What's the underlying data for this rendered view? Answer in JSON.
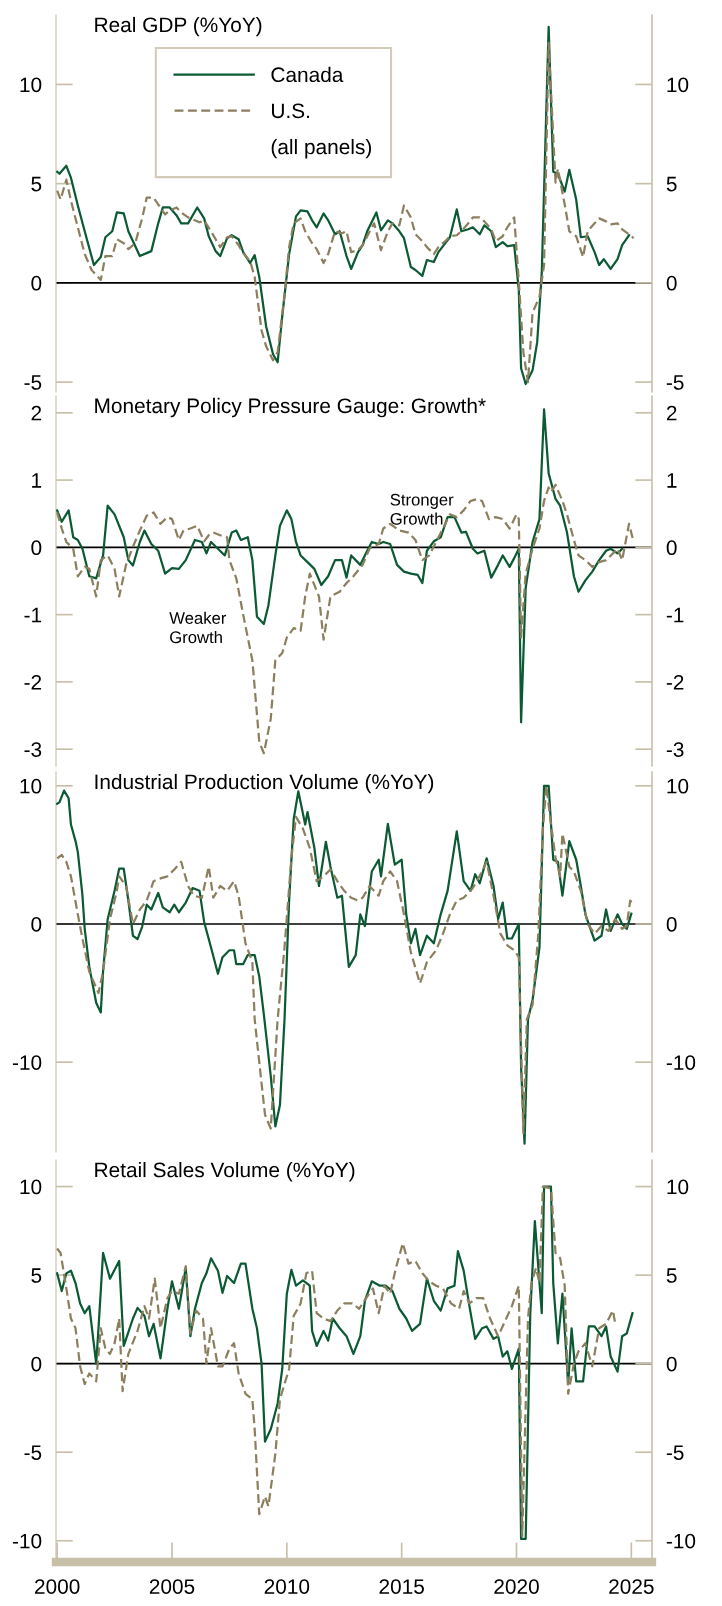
{
  "chart_data": [
    {
      "type": "line",
      "title": "Real GDP (%YoY)",
      "xlim": [
        1999.95,
        2025.9
      ],
      "xticks": [
        2000,
        2005,
        2010,
        2015,
        2020,
        2025
      ],
      "ylim": [
        -5.5,
        13.5
      ],
      "yticks": [
        -5,
        0,
        5,
        10
      ],
      "y2lim": [
        -5.5,
        13.5
      ],
      "y2ticks": [
        -5,
        0,
        5,
        10
      ],
      "tick_labels": "y",
      "grid": false,
      "legend": "top left",
      "annotations": [
        "(all panels)"
      ],
      "ref_lines": [
        {
          "axis": "y",
          "value": 0,
          "color": "#000000"
        }
      ],
      "series": [
        {
          "name": "Canada",
          "color": "#0b5a34",
          "line_style": "solid",
          "x": [
            2000.0,
            2000.1,
            2000.4,
            2000.6,
            2000.9,
            2001.2,
            2001.6,
            2001.9,
            2002.1,
            2002.4,
            2002.6,
            2002.9,
            2003.1,
            2003.6,
            2004.1,
            2004.4,
            2004.6,
            2004.9,
            2005.2,
            2005.4,
            2005.7,
            2006.1,
            2006.4,
            2006.6,
            2006.9,
            2007.1,
            2007.4,
            2007.6,
            2007.9,
            2008.1,
            2008.4,
            2008.6,
            2008.8,
            2009.1,
            2009.4,
            2009.6,
            2009.8,
            2010.1,
            2010.4,
            2010.6,
            2010.9,
            2011.1,
            2011.3,
            2011.6,
            2011.8,
            2012.1,
            2012.3,
            2012.6,
            2012.8,
            2013.1,
            2013.3,
            2013.5,
            2013.9,
            2014.1,
            2014.4,
            2014.6,
            2014.9,
            2015.1,
            2015.4,
            2015.6,
            2015.9,
            2016.1,
            2016.4,
            2016.6,
            2016.9,
            2017.1,
            2017.4,
            2017.6,
            2017.9,
            2018.1,
            2018.4,
            2018.6,
            2018.9,
            2019.1,
            2019.4,
            2019.6,
            2019.9,
            2020.1,
            2020.2,
            2020.4,
            2020.7,
            2020.9,
            2021.1,
            2021.4,
            2021.6,
            2021.8,
            2022.1,
            2022.3,
            2022.6,
            2022.8,
            2023.1,
            2023.4,
            2023.6,
            2023.8,
            2024.1,
            2024.4,
            2024.6,
            2024.9
          ],
          "values": [
            5.6,
            5.5,
            5.9,
            5.3,
            3.9,
            2.6,
            0.9,
            1.3,
            2.3,
            2.6,
            3.55,
            3.5,
            2.6,
            1.35,
            1.6,
            3.0,
            3.8,
            3.8,
            3.4,
            3.0,
            3.0,
            3.8,
            3.25,
            2.35,
            1.6,
            1.35,
            2.25,
            2.4,
            2.2,
            1.55,
            1.0,
            1.4,
            0.3,
            -2.2,
            -3.6,
            -4.0,
            -1.7,
            1.45,
            3.35,
            3.65,
            3.6,
            3.15,
            2.8,
            3.5,
            3.15,
            2.45,
            2.6,
            1.35,
            0.7,
            1.55,
            1.9,
            2.6,
            3.55,
            2.65,
            3.15,
            3.0,
            2.6,
            2.25,
            0.8,
            0.65,
            0.35,
            1.15,
            1.05,
            1.55,
            2.0,
            2.3,
            3.7,
            2.6,
            2.7,
            2.8,
            2.45,
            2.9,
            2.6,
            1.8,
            2.05,
            1.85,
            1.9,
            -0.35,
            -4.3,
            -5.1,
            -4.4,
            -3.0,
            0.5,
            12.9,
            5.6,
            5.5,
            4.6,
            5.7,
            4.2,
            2.3,
            2.35,
            1.55,
            0.9,
            1.2,
            0.7,
            1.2,
            1.9,
            2.4
          ]
        },
        {
          "name": "U.S.",
          "color": "#8c7f5e",
          "line_style": "dashed",
          "x": [
            2000.0,
            2000.15,
            2000.4,
            2000.6,
            2000.9,
            2001.2,
            2001.5,
            2001.9,
            2002.1,
            2002.4,
            2002.6,
            2002.9,
            2003.1,
            2003.4,
            2003.7,
            2003.9,
            2004.2,
            2004.4,
            2004.7,
            2004.9,
            2005.2,
            2005.4,
            2005.7,
            2005.9,
            2006.2,
            2006.4,
            2006.7,
            2006.9,
            2007.1,
            2007.4,
            2007.6,
            2007.9,
            2008.1,
            2008.4,
            2008.6,
            2008.9,
            2009.1,
            2009.4,
            2009.6,
            2009.9,
            2010.1,
            2010.3,
            2010.6,
            2010.8,
            2011.1,
            2011.3,
            2011.6,
            2011.8,
            2012.1,
            2012.4,
            2012.6,
            2012.8,
            2013.1,
            2013.3,
            2013.5,
            2013.8,
            2014.1,
            2014.4,
            2014.6,
            2014.9,
            2015.1,
            2015.4,
            2015.6,
            2015.9,
            2016.1,
            2016.4,
            2016.6,
            2016.9,
            2017.1,
            2017.4,
            2017.6,
            2017.9,
            2018.1,
            2018.4,
            2018.6,
            2018.9,
            2019.1,
            2019.4,
            2019.6,
            2019.9,
            2020.1,
            2020.3,
            2020.5,
            2020.7,
            2021.0,
            2021.2,
            2021.4,
            2021.7,
            2021.8,
            2022.1,
            2022.3,
            2022.6,
            2022.9,
            2023.1,
            2023.4,
            2023.6,
            2023.9,
            2024.1,
            2024.4,
            2024.6,
            2024.9,
            2025.1
          ],
          "values": [
            4.65,
            4.2,
            5.2,
            4.15,
            2.8,
            1.45,
            0.65,
            0.15,
            1.35,
            1.35,
            2.2,
            2.0,
            1.7,
            2.0,
            3.25,
            4.3,
            4.3,
            3.95,
            3.45,
            3.65,
            3.8,
            3.55,
            3.3,
            3.2,
            3.05,
            3.15,
            2.6,
            2.2,
            1.8,
            2.3,
            2.35,
            1.9,
            1.5,
            1.1,
            0.3,
            -2.4,
            -3.2,
            -3.9,
            -3.5,
            -0.6,
            1.8,
            3.0,
            3.25,
            2.6,
            2.0,
            1.7,
            1.0,
            1.45,
            2.6,
            2.5,
            2.6,
            1.55,
            1.65,
            1.9,
            2.35,
            3.0,
            1.65,
            2.6,
            3.0,
            2.9,
            3.9,
            3.3,
            2.45,
            2.1,
            1.8,
            1.45,
            1.8,
            2.1,
            2.35,
            2.4,
            2.6,
            3.0,
            3.3,
            3.3,
            3.1,
            2.7,
            2.1,
            2.35,
            2.8,
            3.3,
            0.1,
            -3.5,
            -5.0,
            -1.5,
            -0.7,
            0.9,
            12.1,
            5.05,
            5.75,
            3.95,
            2.6,
            2.35,
            1.3,
            2.6,
            3.0,
            3.25,
            3.1,
            2.95,
            3.0,
            2.7,
            2.45,
            2.25
          ]
        }
      ]
    },
    {
      "type": "line",
      "title": "Monetary Policy Pressure Gauge: Growth*",
      "xlim": [
        1999.95,
        2025.9
      ],
      "xticks": [
        2000,
        2005,
        2010,
        2015,
        2020,
        2025
      ],
      "ylim": [
        -3.25,
        2.25
      ],
      "yticks": [
        -3,
        -2,
        -1,
        0,
        1,
        2
      ],
      "y2lim": [
        -3.25,
        2.25
      ],
      "y2ticks": [
        -3,
        -2,
        -1,
        0,
        1,
        2
      ],
      "tick_labels": "y",
      "grid": false,
      "annotations": [
        "Stronger\nGrowth",
        "Weaker\nGrowth"
      ],
      "ref_lines": [
        {
          "axis": "y",
          "value": 0,
          "color": "#000000"
        }
      ],
      "series": [
        {
          "color": "#0b5a34",
          "line_style": "solid",
          "x": [
            2000.0,
            2000.2,
            2000.5,
            2000.7,
            2000.9,
            2001.1,
            2001.4,
            2001.7,
            2002.0,
            2002.2,
            2002.5,
            2002.9,
            2003.1,
            2003.3,
            2003.6,
            2003.8,
            2004.1,
            2004.4,
            2004.7,
            2005.0,
            2005.3,
            2005.6,
            2006.0,
            2006.3,
            2006.5,
            2006.7,
            2007.0,
            2007.3,
            2007.6,
            2007.8,
            2008.0,
            2008.3,
            2008.5,
            2008.7,
            2009.0,
            2009.2,
            2009.5,
            2009.7,
            2010.0,
            2010.2,
            2010.4,
            2010.6,
            2010.9,
            2011.2,
            2011.5,
            2011.8,
            2012.1,
            2012.4,
            2012.6,
            2012.8,
            2013.2,
            2013.5,
            2013.7,
            2014.0,
            2014.2,
            2014.5,
            2014.8,
            2015.1,
            2015.4,
            2015.7,
            2015.9,
            2016.1,
            2016.4,
            2016.7,
            2017.0,
            2017.3,
            2017.6,
            2017.8,
            2018.1,
            2018.3,
            2018.6,
            2018.9,
            2019.2,
            2019.4,
            2019.7,
            2019.9,
            2020.1,
            2020.2,
            2020.4,
            2020.7,
            2021.0,
            2021.2,
            2021.4,
            2021.7,
            2021.9,
            2022.2,
            2022.5,
            2022.7,
            2023.0,
            2023.3,
            2023.6,
            2023.9,
            2024.1,
            2024.4,
            2024.6
          ],
          "values": [
            0.55,
            0.38,
            0.55,
            0.15,
            0.11,
            -0.02,
            -0.43,
            -0.46,
            -0.12,
            0.62,
            0.49,
            0.15,
            -0.19,
            -0.27,
            0.08,
            0.25,
            0.05,
            -0.05,
            -0.39,
            -0.31,
            -0.32,
            -0.19,
            0.11,
            0.08,
            -0.09,
            0.08,
            -0.02,
            -0.12,
            0.22,
            0.25,
            0.11,
            0.15,
            -0.19,
            -1.03,
            -1.14,
            -0.86,
            -0.12,
            0.32,
            0.55,
            0.42,
            0.08,
            -0.12,
            -0.22,
            -0.32,
            -0.56,
            -0.43,
            -0.19,
            -0.19,
            -0.45,
            -0.12,
            -0.26,
            -0.05,
            0.08,
            0.05,
            0.08,
            0.05,
            -0.26,
            -0.36,
            -0.39,
            -0.41,
            -0.53,
            -0.05,
            0.09,
            0.15,
            0.45,
            0.45,
            0.22,
            0.23,
            -0.02,
            -0.09,
            -0.05,
            -0.45,
            -0.26,
            -0.12,
            -0.29,
            -0.16,
            -0.02,
            -2.6,
            -0.6,
            0.08,
            0.42,
            2.05,
            1.1,
            0.72,
            0.62,
            0.22,
            -0.43,
            -0.66,
            -0.49,
            -0.36,
            -0.19,
            -0.05,
            -0.02,
            -0.09,
            -0.02
          ]
        },
        {
          "color": "#8c7f5e",
          "line_style": "dashed",
          "x": [
            2000.0,
            2000.2,
            2000.4,
            2000.7,
            2000.9,
            2001.2,
            2001.4,
            2001.7,
            2001.9,
            2002.2,
            2002.5,
            2002.7,
            2003.0,
            2003.3,
            2003.6,
            2003.9,
            2004.2,
            2004.5,
            2004.8,
            2005.0,
            2005.3,
            2005.5,
            2005.8,
            2006.1,
            2006.4,
            2006.6,
            2006.8,
            2007.1,
            2007.4,
            2007.5,
            2007.8,
            2008.1,
            2008.5,
            2008.6,
            2008.8,
            2009.0,
            2009.3,
            2009.5,
            2009.8,
            2010.0,
            2010.3,
            2010.6,
            2010.8,
            2011.0,
            2011.4,
            2011.6,
            2011.9,
            2012.3,
            2012.6,
            2012.9,
            2013.3,
            2013.6,
            2014.0,
            2014.2,
            2014.5,
            2014.9,
            2015.3,
            2015.6,
            2015.9,
            2016.2,
            2016.5,
            2016.8,
            2017.1,
            2017.4,
            2017.7,
            2018.0,
            2018.3,
            2018.5,
            2018.8,
            2019.1,
            2019.4,
            2019.7,
            2020.0,
            2020.1,
            2020.2,
            2020.4,
            2020.7,
            2021.0,
            2021.2,
            2021.4,
            2021.5,
            2021.7,
            2022.0,
            2022.2,
            2022.5,
            2022.7,
            2023.0,
            2023.3,
            2023.6,
            2023.9,
            2024.2,
            2024.4,
            2024.6,
            2024.9,
            2025.1
          ],
          "values": [
            0.52,
            0.28,
            0.08,
            -0.02,
            -0.43,
            -0.29,
            -0.32,
            -0.73,
            -0.19,
            -0.12,
            -0.32,
            -0.73,
            -0.26,
            0.01,
            0.25,
            0.47,
            0.52,
            0.35,
            0.45,
            0.42,
            0.11,
            0.25,
            0.28,
            0.32,
            0.09,
            0.18,
            0.22,
            0.18,
            0.15,
            -0.19,
            -0.46,
            -1.0,
            -1.68,
            -2.08,
            -2.89,
            -3.06,
            -2.55,
            -1.68,
            -1.57,
            -1.34,
            -1.2,
            -1.24,
            -0.73,
            -0.39,
            -0.73,
            -1.37,
            -0.73,
            -0.66,
            -0.53,
            -0.43,
            -0.26,
            -0.02,
            0.05,
            0.28,
            0.35,
            0.25,
            0.22,
            0.11,
            -0.19,
            -0.12,
            0.08,
            0.28,
            0.49,
            0.45,
            0.55,
            0.69,
            0.72,
            0.69,
            0.42,
            0.45,
            0.42,
            0.28,
            0.49,
            0.42,
            -1.34,
            -0.39,
            -0.02,
            0.28,
            0.69,
            0.89,
            0.82,
            0.93,
            0.69,
            0.49,
            0.11,
            -0.12,
            -0.19,
            -0.29,
            -0.22,
            -0.19,
            -0.09,
            -0.02,
            -0.19,
            0.35,
            0.08
          ]
        }
      ]
    },
    {
      "type": "line",
      "title": "Industrial Production Volume (%YoY)",
      "xlim": [
        1999.95,
        2025.9
      ],
      "xticks": [
        2000,
        2005,
        2010,
        2015,
        2020,
        2025
      ],
      "ylim": [
        -16.5,
        11
      ],
      "yticks": [
        -10,
        0,
        10
      ],
      "y2lim": [
        -16.5,
        11
      ],
      "y2ticks": [
        -10,
        0,
        10
      ],
      "tick_labels": "y",
      "grid": false,
      "ref_lines": [
        {
          "axis": "y",
          "value": 0,
          "color": "#000000"
        }
      ],
      "series": [
        {
          "color": "#0b5a34",
          "line_style": "solid",
          "x": [
            2000.0,
            2000.1,
            2000.3,
            2000.5,
            2000.6,
            2000.8,
            2000.9,
            2001.1,
            2001.2,
            2001.4,
            2001.7,
            2001.9,
            2002.0,
            2002.2,
            2002.5,
            2002.7,
            2002.9,
            2003.1,
            2003.3,
            2003.5,
            2003.7,
            2003.9,
            2004.1,
            2004.4,
            2004.6,
            2004.9,
            2005.1,
            2005.3,
            2005.6,
            2005.9,
            2006.2,
            2006.4,
            2006.7,
            2007.0,
            2007.2,
            2007.5,
            2007.7,
            2007.8,
            2008.1,
            2008.3,
            2008.6,
            2008.8,
            2009.0,
            2009.3,
            2009.5,
            2009.7,
            2009.9,
            2010.1,
            2010.3,
            2010.5,
            2010.8,
            2010.9,
            2011.2,
            2011.4,
            2011.7,
            2011.9,
            2012.2,
            2012.4,
            2012.7,
            2013.0,
            2013.2,
            2013.4,
            2013.7,
            2014.0,
            2014.1,
            2014.4,
            2014.7,
            2015.0,
            2015.2,
            2015.4,
            2015.6,
            2015.8,
            2016.1,
            2016.4,
            2016.7,
            2017.0,
            2017.4,
            2017.7,
            2018.0,
            2018.2,
            2018.4,
            2018.7,
            2019.0,
            2019.2,
            2019.4,
            2019.6,
            2019.8,
            2020.1,
            2020.2,
            2020.35,
            2020.5,
            2020.7,
            2021.0,
            2021.1,
            2021.2,
            2021.4,
            2021.6,
            2021.8,
            2022.0,
            2022.3,
            2022.6,
            2022.8,
            2023.0,
            2023.4,
            2023.7,
            2023.9,
            2024.1,
            2024.4,
            2024.6,
            2024.8,
            2025.0
          ],
          "values": [
            8.7,
            8.8,
            9.65,
            9.1,
            7.2,
            6.0,
            5.2,
            2.1,
            -0.35,
            -3.1,
            -5.7,
            -6.4,
            -3.4,
            0.35,
            2.4,
            4.0,
            4.0,
            1.7,
            -0.85,
            -1.1,
            -0.2,
            1.4,
            1.05,
            2.25,
            1.2,
            0.85,
            1.4,
            0.85,
            1.55,
            2.6,
            2.4,
            0.15,
            -1.7,
            -3.6,
            -2.4,
            -1.9,
            -1.9,
            -2.9,
            -2.9,
            -2.25,
            -2.25,
            -3.8,
            -6.55,
            -11.0,
            -14.65,
            -13.1,
            -6.9,
            1.7,
            7.6,
            9.6,
            7.2,
            8.1,
            5.5,
            2.75,
            5.95,
            4.15,
            1.9,
            2.05,
            -3.1,
            -2.25,
            0.7,
            -0.15,
            3.8,
            4.65,
            3.45,
            7.25,
            4.3,
            4.65,
            0.7,
            -1.4,
            -0.35,
            -2.25,
            -0.85,
            -1.4,
            0.7,
            2.4,
            6.7,
            3.1,
            2.4,
            3.6,
            2.95,
            4.75,
            2.75,
            0.35,
            1.55,
            -1.05,
            -1.05,
            0.0,
            -10.35,
            -15.9,
            -6.9,
            -5.5,
            -1.7,
            4.15,
            10.0,
            10.0,
            4.65,
            4.5,
            2.05,
            6.0,
            4.65,
            2.75,
            0.7,
            -1.2,
            -0.85,
            1.05,
            -0.5,
            0.7,
            0.0,
            -0.35,
            0.75
          ]
        },
        {
          "color": "#8c7f5e",
          "line_style": "dashed",
          "x": [
            2000.0,
            2000.2,
            2000.4,
            2000.6,
            2000.9,
            2001.1,
            2001.4,
            2001.8,
            2002.0,
            2002.3,
            2002.6,
            2002.7,
            2003.0,
            2003.3,
            2003.6,
            2003.9,
            2004.2,
            2004.5,
            2004.8,
            2005.1,
            2005.4,
            2005.7,
            2005.95,
            2006.3,
            2006.6,
            2006.8,
            2007.1,
            2007.4,
            2007.7,
            2007.9,
            2008.2,
            2008.5,
            2008.6,
            2008.8,
            2009.05,
            2009.3,
            2009.6,
            2009.9,
            2010.2,
            2010.4,
            2010.7,
            2011.0,
            2011.3,
            2011.6,
            2011.9,
            2012.2,
            2012.5,
            2012.8,
            2013.1,
            2013.3,
            2013.6,
            2014.0,
            2014.2,
            2014.5,
            2014.8,
            2015.1,
            2015.4,
            2015.8,
            2016.1,
            2016.5,
            2016.8,
            2017.1,
            2017.4,
            2017.7,
            2018.1,
            2018.5,
            2018.7,
            2019.0,
            2019.3,
            2019.6,
            2019.9,
            2020.1,
            2020.3,
            2020.45,
            2020.7,
            2020.95,
            2021.15,
            2021.3,
            2021.5,
            2021.7,
            2021.9,
            2022.0,
            2022.3,
            2022.5,
            2022.8,
            2023.1,
            2023.4,
            2023.7,
            2024.0,
            2024.3,
            2024.6,
            2024.8,
            2024.95,
            2025.1
          ],
          "values": [
            4.75,
            5.0,
            4.5,
            3.45,
            0.7,
            -1.05,
            -3.45,
            -5.0,
            -3.45,
            0.35,
            2.4,
            3.45,
            2.75,
            0.0,
            1.05,
            1.7,
            3.1,
            3.3,
            3.45,
            3.95,
            4.5,
            2.75,
            2.05,
            1.9,
            4.15,
            1.9,
            2.75,
            2.4,
            3.1,
            2.05,
            -1.4,
            -2.75,
            -6.9,
            -10.0,
            -13.8,
            -14.8,
            -6.9,
            -1.7,
            4.8,
            7.75,
            6.9,
            5.5,
            3.1,
            3.45,
            3.95,
            3.1,
            2.4,
            1.9,
            1.7,
            1.9,
            2.75,
            2.05,
            3.1,
            3.8,
            3.1,
            0.7,
            -2.05,
            -4.3,
            -2.75,
            -1.9,
            -0.7,
            0.7,
            1.7,
            1.9,
            2.6,
            3.8,
            4.5,
            2.05,
            -0.7,
            -1.55,
            -1.9,
            -2.4,
            -15.15,
            -6.9,
            -5.85,
            -0.7,
            6.9,
            10.0,
            7.25,
            4.8,
            3.45,
            6.55,
            4.15,
            3.8,
            2.4,
            0.0,
            -0.7,
            -0.15,
            -0.5,
            0.35,
            -0.35,
            -0.15,
            1.7,
            1.4
          ]
        }
      ]
    },
    {
      "type": "line",
      "title": "Retail Sales Volume (%YoY)",
      "xlim": [
        1999.95,
        2025.9
      ],
      "xticks": [
        2000,
        2005,
        2010,
        2015,
        2020,
        2025
      ],
      "ylim": [
        -11.2,
        11.5
      ],
      "yticks": [
        -10,
        -5,
        0,
        5,
        10
      ],
      "y2lim": [
        -11.2,
        11.5
      ],
      "y2ticks": [
        -10,
        -5,
        0,
        5,
        10
      ],
      "grid": false,
      "ref_lines": [
        {
          "axis": "y",
          "value": 0,
          "color": "#000000"
        }
      ],
      "series": [
        {
          "color": "#0b5a34",
          "line_style": "solid",
          "x": [
            2000.0,
            2000.2,
            2000.4,
            2000.6,
            2000.8,
            2001.0,
            2001.2,
            2001.4,
            2001.7,
            2001.8,
            2002.0,
            2002.3,
            2002.7,
            2002.9,
            2003.3,
            2003.5,
            2003.8,
            2004.0,
            2004.2,
            2004.5,
            2004.8,
            2005.0,
            2005.3,
            2005.6,
            2005.8,
            2006.0,
            2006.3,
            2006.5,
            2006.7,
            2007.0,
            2007.2,
            2007.4,
            2007.7,
            2008.0,
            2008.2,
            2008.5,
            2008.7,
            2008.9,
            2009.05,
            2009.3,
            2009.6,
            2009.8,
            2010.0,
            2010.2,
            2010.4,
            2010.7,
            2011.0,
            2011.1,
            2011.3,
            2011.6,
            2011.8,
            2012.0,
            2012.3,
            2012.6,
            2012.9,
            2013.2,
            2013.4,
            2013.7,
            2014.05,
            2014.3,
            2014.6,
            2014.9,
            2015.2,
            2015.45,
            2015.8,
            2016.1,
            2016.4,
            2016.7,
            2017.0,
            2017.3,
            2017.45,
            2017.7,
            2017.95,
            2018.2,
            2018.5,
            2018.7,
            2019.0,
            2019.2,
            2019.4,
            2019.6,
            2019.8,
            2020.1,
            2020.2,
            2020.4,
            2020.6,
            2020.8,
            2021.1,
            2021.2,
            2021.5,
            2021.6,
            2021.8,
            2022.0,
            2022.25,
            2022.4,
            2022.6,
            2022.9,
            2023.15,
            2023.4,
            2023.7,
            2023.9,
            2024.1,
            2024.4,
            2024.6,
            2024.8,
            2025.05
          ],
          "values": [
            5.1,
            4.1,
            5.1,
            5.25,
            4.55,
            3.4,
            2.85,
            3.25,
            0.0,
            2.0,
            6.25,
            4.8,
            5.8,
            1.0,
            2.55,
            3.15,
            2.7,
            1.55,
            2.25,
            0.3,
            3.1,
            4.65,
            3.1,
            5.4,
            1.55,
            3.1,
            4.55,
            5.1,
            5.95,
            5.25,
            4.0,
            4.95,
            4.55,
            5.65,
            5.65,
            3.1,
            2.0,
            0.0,
            -4.4,
            -3.7,
            -2.25,
            -0.3,
            3.95,
            5.3,
            4.4,
            4.7,
            4.4,
            1.85,
            1.0,
            1.85,
            1.3,
            2.55,
            2.0,
            1.55,
            0.55,
            1.55,
            3.55,
            4.65,
            4.4,
            4.4,
            4.1,
            3.1,
            2.55,
            1.85,
            2.25,
            4.8,
            3.55,
            3.0,
            4.25,
            4.4,
            6.35,
            5.25,
            3.25,
            1.4,
            2.0,
            2.1,
            1.4,
            1.55,
            0.4,
            0.7,
            -0.3,
            0.85,
            -9.9,
            -9.9,
            2.85,
            8.05,
            2.85,
            10.0,
            10.0,
            4.55,
            1.15,
            3.95,
            -1.15,
            2.0,
            -1.0,
            -1.0,
            2.1,
            2.1,
            1.55,
            2.1,
            0.4,
            -0.45,
            1.55,
            1.7,
            2.85
          ]
        },
        {
          "color": "#8c7f5e",
          "line_style": "dashed",
          "x": [
            2000.0,
            2000.15,
            2000.4,
            2000.6,
            2000.8,
            2001.0,
            2001.2,
            2001.4,
            2001.7,
            2001.9,
            2002.1,
            2002.3,
            2002.5,
            2002.7,
            2002.85,
            2003.1,
            2003.5,
            2003.8,
            2004.0,
            2004.25,
            2004.5,
            2004.8,
            2005.0,
            2005.3,
            2005.6,
            2005.8,
            2006.05,
            2006.35,
            2006.5,
            2006.7,
            2007.0,
            2007.2,
            2007.5,
            2007.7,
            2007.9,
            2008.2,
            2008.5,
            2008.6,
            2008.8,
            2009.05,
            2009.2,
            2009.5,
            2009.7,
            2009.9,
            2010.1,
            2010.3,
            2010.6,
            2010.85,
            2011.1,
            2011.3,
            2011.6,
            2011.9,
            2012.2,
            2012.5,
            2012.85,
            2013.15,
            2013.45,
            2013.75,
            2014.0,
            2014.25,
            2014.5,
            2014.75,
            2015.05,
            2015.3,
            2015.6,
            2015.9,
            2016.2,
            2016.5,
            2016.8,
            2017.15,
            2017.5,
            2017.7,
            2017.95,
            2018.25,
            2018.55,
            2018.85,
            2019.2,
            2019.5,
            2019.8,
            2020.1,
            2020.25,
            2020.5,
            2020.65,
            2020.85,
            2021.0,
            2021.15,
            2021.5,
            2021.7,
            2021.9,
            2022.1,
            2022.25,
            2022.5,
            2022.7,
            2023.0,
            2023.3,
            2023.6,
            2023.9,
            2024.2,
            2024.3
          ],
          "values": [
            6.5,
            6.25,
            4.25,
            2.55,
            2.0,
            -0.15,
            -1.15,
            -0.55,
            -1.0,
            2.0,
            0.85,
            0.55,
            1.15,
            2.55,
            -1.55,
            0.55,
            1.85,
            3.25,
            2.55,
            4.8,
            2.0,
            3.7,
            4.1,
            3.95,
            5.5,
            1.7,
            3.0,
            2.55,
            0.0,
            2.0,
            -0.15,
            -0.15,
            0.85,
            1.15,
            -0.55,
            -1.7,
            -2.0,
            -3.7,
            -8.5,
            -7.5,
            -8.05,
            -5.1,
            -2.0,
            -1.15,
            -0.3,
            2.7,
            3.4,
            5.1,
            5.25,
            2.85,
            2.55,
            2.4,
            3.0,
            3.4,
            3.4,
            3.1,
            3.7,
            4.25,
            2.85,
            4.4,
            3.95,
            5.4,
            6.8,
            5.65,
            5.8,
            5.1,
            4.65,
            4.4,
            4.25,
            3.4,
            3.1,
            4.1,
            3.4,
            3.7,
            3.7,
            2.55,
            1.55,
            2.4,
            3.25,
            4.4,
            -9.75,
            2.55,
            4.55,
            5.4,
            4.55,
            10.0,
            9.9,
            6.25,
            5.95,
            4.4,
            -1.7,
            0.0,
            0.7,
            1.15,
            -0.15,
            2.0,
            2.25,
            3.0,
            2.25
          ]
        }
      ]
    }
  ]
}
